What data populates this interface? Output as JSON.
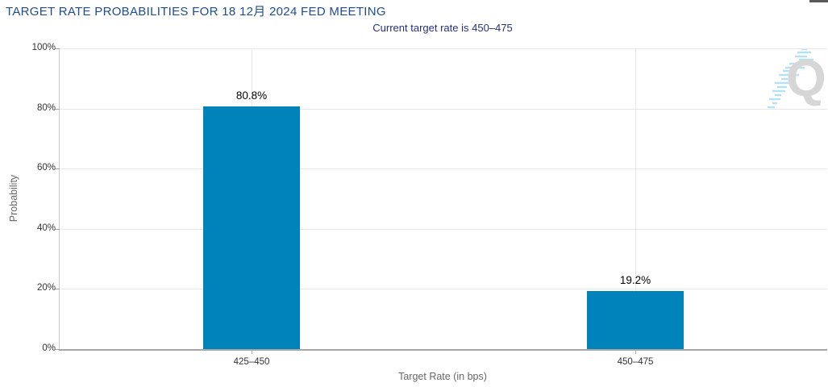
{
  "chart_data": {
    "type": "bar",
    "title": "TARGET RATE PROBABILITIES FOR 18 12月 2024 FED MEETING",
    "subtitle": "Current target rate is 450–475",
    "xlabel": "Target Rate (in bps)",
    "ylabel": "Probability",
    "categories": [
      "425–450",
      "450–475"
    ],
    "values": [
      80.8,
      19.2
    ],
    "value_labels": [
      "80.8%",
      "19.2%"
    ],
    "ylim": [
      0,
      100
    ],
    "ytick_step": 20,
    "ytick_labels": [
      "0%",
      "20%",
      "40%",
      "60%",
      "80%",
      "100%"
    ],
    "grid": true,
    "legend": "none",
    "bar_color": "#0082ba"
  },
  "watermark": {
    "letter": "Q"
  },
  "icons": {
    "menu": "hamburger-menu-icon",
    "watermark_streak": "watermark-streak-icon"
  },
  "colors": {
    "title_color": "#1d4b94",
    "subtitle_color": "#24307e",
    "bar_color": "#0082ba",
    "grid": "#e6e6e6",
    "axis_line": "#a6a6a6",
    "tick_label": "#333333",
    "axis_title": "#666666",
    "data_label": "#000000",
    "menu_icon": "#58595b",
    "watermark_q": "#d6d6d6",
    "watermark_streak": "#b5e1f4"
  }
}
